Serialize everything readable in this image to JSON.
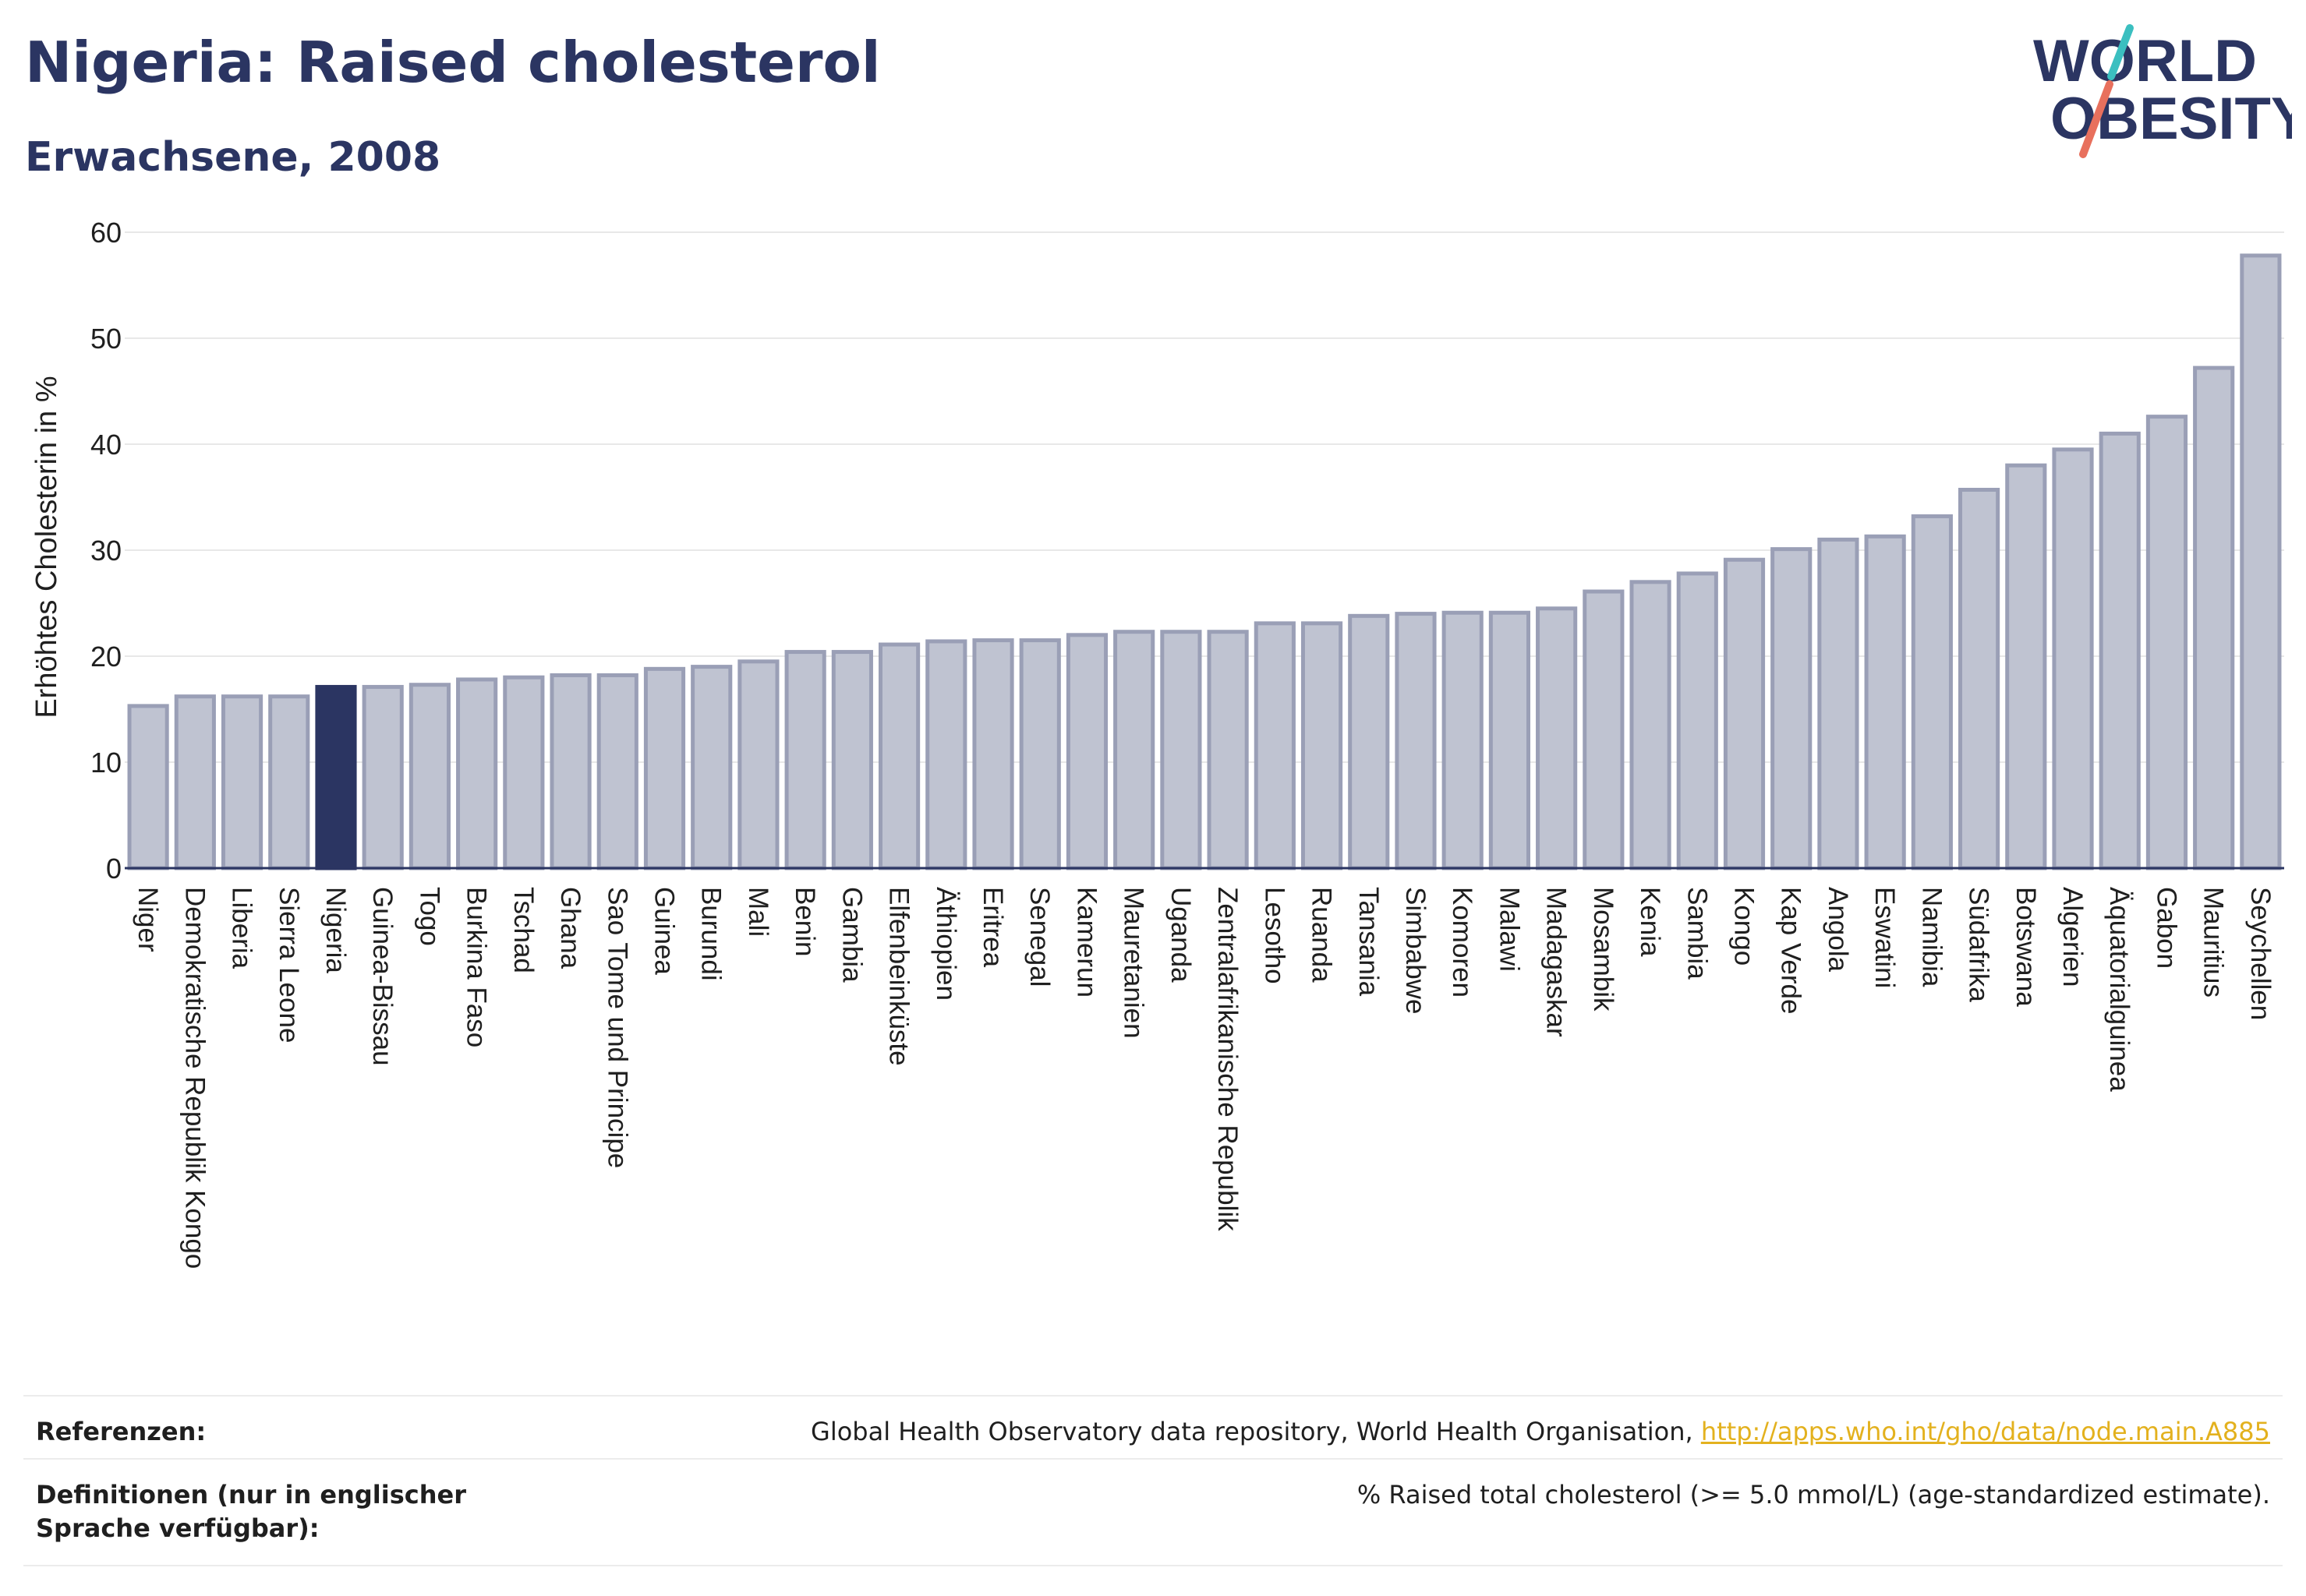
{
  "header": {
    "title": "Nigeria: Raised cholesterol",
    "subtitle": "Erwachsene, 2008"
  },
  "logo": {
    "text_line1": "WORLD",
    "text_line2": "OBESITY",
    "text_color": "#2b3562",
    "slash_top_color": "#3bbfc0",
    "slash_bottom_color": "#e8705d"
  },
  "colors": {
    "bar": "#bfc3d1",
    "bar_stroke": "#9a9fb6",
    "highlight": "#2b3562",
    "grid": "#e8e8e8",
    "axis": "#2b3562"
  },
  "chart_data": {
    "type": "bar",
    "title": "Nigeria: Raised cholesterol",
    "subtitle": "Erwachsene, 2008",
    "xlabel": "",
    "ylabel": "Erhöhtes Cholesterin in %",
    "ylim": [
      0,
      60
    ],
    "yticks": [
      0,
      10,
      20,
      30,
      40,
      50,
      60
    ],
    "grid": true,
    "highlight": "Nigeria",
    "categories": [
      "Niger",
      "Demokratische Republik Kongo",
      "Liberia",
      "Sierra Leone",
      "Nigeria",
      "Guinea-Bissau",
      "Togo",
      "Burkina Faso",
      "Tschad",
      "Ghana",
      "Sao Tome und Principe",
      "Guinea",
      "Burundi",
      "Mali",
      "Benin",
      "Gambia",
      "Elfenbeinküste",
      "Äthiopien",
      "Eritrea",
      "Senegal",
      "Kamerun",
      "Mauretanien",
      "Uganda",
      "Zentralafrikanische Republik",
      "Lesotho",
      "Ruanda",
      "Tansania",
      "Simbabwe",
      "Komoren",
      "Malawi",
      "Madagaskar",
      "Mosambik",
      "Kenia",
      "Sambia",
      "Kongo",
      "Kap Verde",
      "Angola",
      "Eswatini",
      "Namibia",
      "Südafrika",
      "Botswana",
      "Algerien",
      "Äquatorialguinea",
      "Gabon",
      "Mauritius",
      "Seychellen"
    ],
    "values": [
      15.3,
      16.2,
      16.2,
      16.2,
      17.1,
      17.1,
      17.3,
      17.8,
      18.0,
      18.2,
      18.2,
      18.8,
      19.0,
      19.5,
      20.4,
      20.4,
      21.1,
      21.4,
      21.5,
      21.5,
      22.0,
      22.3,
      22.3,
      22.3,
      23.1,
      23.1,
      23.8,
      24.0,
      24.1,
      24.1,
      24.5,
      26.1,
      27.0,
      27.8,
      29.1,
      30.1,
      31.0,
      31.3,
      33.2,
      35.7,
      38.0,
      39.5,
      41.0,
      42.6,
      47.2,
      57.8
    ]
  },
  "references": {
    "label": "Referenzen:",
    "text": "Global Health Observatory data repository, World Health Organisation, ",
    "link": "http://apps.who.int/gho/data/node.main.A885"
  },
  "definitions": {
    "label": "Definitionen (nur in englischer Sprache verfügbar):",
    "text": "% Raised total cholesterol (>= 5.0 mmol/L) (age-standardized estimate)."
  }
}
